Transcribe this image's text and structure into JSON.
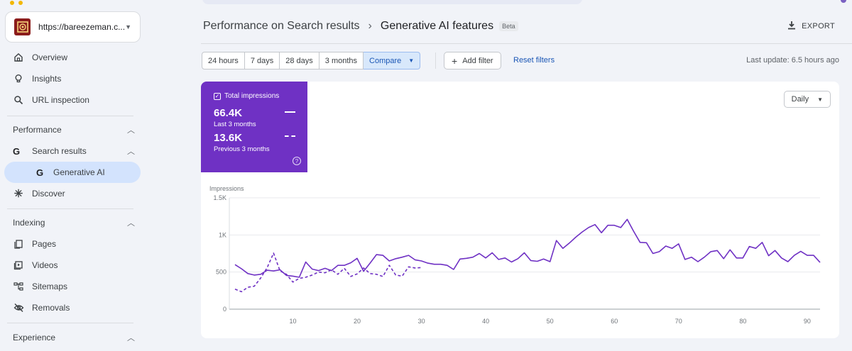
{
  "property": {
    "url": "https://bareezeman.c..."
  },
  "sidebar": {
    "items": [
      {
        "label": "Overview"
      },
      {
        "label": "Insights"
      },
      {
        "label": "URL inspection"
      }
    ],
    "performance": {
      "section_label": "Performance",
      "search_results": "Search results",
      "generative_ai": "Generative AI",
      "discover": "Discover"
    },
    "indexing": {
      "section_label": "Indexing",
      "items": [
        {
          "label": "Pages"
        },
        {
          "label": "Videos"
        },
        {
          "label": "Sitemaps"
        },
        {
          "label": "Removals"
        }
      ]
    },
    "experience": {
      "section_label": "Experience"
    }
  },
  "header": {
    "breadcrumb_parent": "Performance on Search results",
    "breadcrumb_current": "Generative AI features",
    "badge": "Beta",
    "export_label": "EXPORT"
  },
  "filters": {
    "ranges": [
      "24 hours",
      "7 days",
      "28 days",
      "3 months"
    ],
    "compare_label": "Compare",
    "add_filter_label": "Add filter",
    "reset_label": "Reset filters",
    "last_update": "Last update: 6.5 hours ago"
  },
  "metric": {
    "title": "Total impressions",
    "current_value": "66.4K",
    "current_period": "Last 3 months",
    "previous_value": "13.6K",
    "previous_period": "Previous 3 months",
    "accent_color": "#6f31c4",
    "help_glyph": "?"
  },
  "granularity": {
    "selected": "Daily"
  },
  "chart_data": {
    "type": "line",
    "ylabel": "Impressions",
    "ylim": [
      0,
      1500
    ],
    "y_ticks": [
      0,
      500,
      1000,
      1500
    ],
    "y_tick_labels": [
      "0",
      "500",
      "1K",
      "1.5K"
    ],
    "x_ticks": [
      10,
      20,
      30,
      40,
      50,
      60,
      70,
      80,
      90
    ],
    "xlim": [
      1,
      92
    ],
    "grid": true,
    "series": [
      {
        "style": "solid",
        "color": "#6f31c4",
        "x": [
          1,
          2,
          3,
          4,
          5,
          6,
          7,
          8,
          9,
          10,
          11,
          12,
          13,
          14,
          15,
          16,
          17,
          18,
          19,
          20,
          21,
          22,
          23,
          24,
          25,
          26,
          27,
          28,
          29,
          30,
          31,
          32,
          33,
          34,
          35,
          36,
          37,
          38,
          39,
          40,
          41,
          42,
          43,
          44,
          45,
          46,
          47,
          48,
          49,
          50,
          51,
          52,
          53,
          54,
          55,
          56,
          57,
          58,
          59,
          60,
          61,
          62,
          63,
          64,
          65,
          66,
          67,
          68,
          69,
          70,
          71,
          72,
          73,
          74,
          75,
          76,
          77,
          78,
          79,
          80,
          81,
          82,
          83,
          84,
          85,
          86,
          87,
          88,
          89,
          90,
          91,
          92
        ],
        "values": [
          600,
          545,
          480,
          460,
          470,
          525,
          515,
          530,
          455,
          445,
          430,
          635,
          540,
          520,
          550,
          520,
          590,
          590,
          625,
          685,
          510,
          620,
          735,
          725,
          650,
          680,
          700,
          725,
          665,
          650,
          620,
          605,
          605,
          590,
          535,
          675,
          685,
          700,
          750,
          690,
          760,
          670,
          690,
          635,
          680,
          760,
          655,
          645,
          675,
          640,
          925,
          820,
          890,
          970,
          1040,
          1100,
          1140,
          1030,
          1130,
          1130,
          1100,
          1210,
          1050,
          900,
          895,
          750,
          775,
          850,
          820,
          880,
          670,
          700,
          640,
          700,
          775,
          790,
          680,
          800,
          690,
          690,
          845,
          820,
          900,
          720,
          790,
          690,
          640,
          725,
          780,
          725,
          725,
          630
        ]
      },
      {
        "style": "dashed",
        "color": "#6f31c4",
        "x": [
          1,
          2,
          3,
          4,
          5,
          6,
          7,
          8,
          9,
          10,
          11,
          12,
          13,
          14,
          15,
          16,
          17,
          18,
          19,
          20,
          21,
          22,
          23,
          24,
          25,
          26,
          27,
          28,
          29,
          30
        ],
        "values": [
          270,
          235,
          295,
          310,
          420,
          560,
          755,
          515,
          470,
          365,
          415,
          430,
          460,
          500,
          490,
          530,
          470,
          550,
          440,
          475,
          555,
          480,
          470,
          440,
          590,
          460,
          445,
          570,
          555,
          560
        ]
      }
    ]
  },
  "colors": {
    "accent": "#6f31c4",
    "link": "#1a56b5",
    "active_nav": "#d3e3fd",
    "compare_bg": "#d8e8fb"
  }
}
